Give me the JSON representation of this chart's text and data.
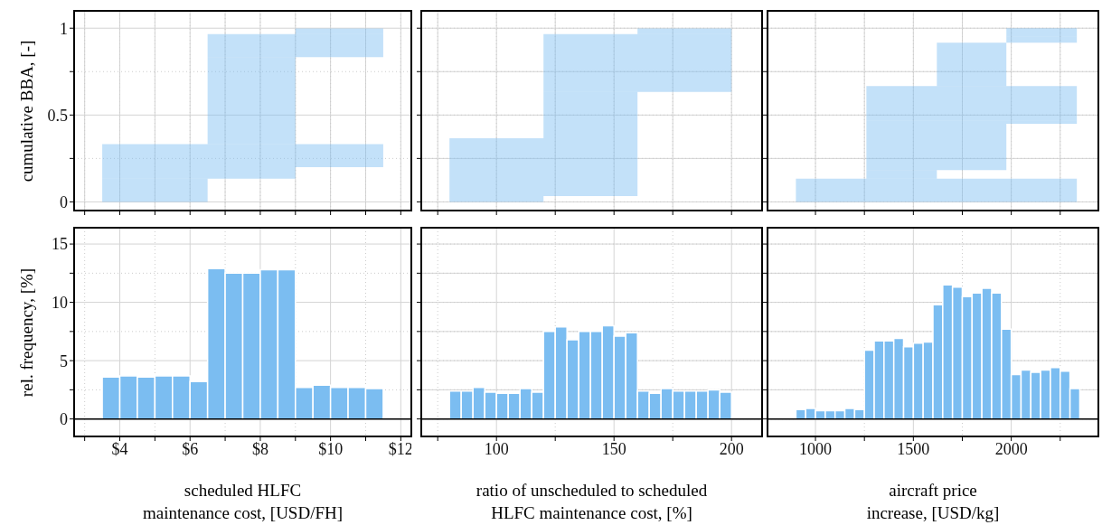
{
  "chart_data": [
    {
      "type": "area",
      "stacked": true,
      "ylabel": "cumulative BBA, [-]",
      "xlim": [
        2.7,
        12.3
      ],
      "ylim": [
        -0.05,
        1.1
      ],
      "xticks": [
        {
          "value": 3,
          "label": null
        },
        {
          "value": 4,
          "label": null
        },
        {
          "value": 5,
          "label": null
        },
        {
          "value": 6,
          "label": null
        },
        {
          "value": 7,
          "label": null
        },
        {
          "value": 8,
          "label": null
        },
        {
          "value": 9,
          "label": null
        },
        {
          "value": 10,
          "label": null
        },
        {
          "value": 11,
          "label": null
        },
        {
          "value": 12,
          "label": null
        }
      ],
      "yticks": [
        0,
        {
          "value": 0.25,
          "label": null
        },
        0.5,
        {
          "value": 0.75,
          "label": null
        },
        1
      ],
      "grid": true,
      "tick_labels": "y",
      "series": [
        {
          "x": [
            3.5,
            6.5
          ],
          "values": [
            0.033,
            0.033
          ],
          "color": "#7bbdf1"
        },
        {
          "x": [
            3.5,
            6.5
          ],
          "values": [
            0.1,
            0.1
          ],
          "color": "#7bbdf1"
        },
        {
          "x": [
            3.5,
            9
          ],
          "values": [
            0.067,
            0.067
          ],
          "color": "#7bbdf1"
        },
        {
          "x": [
            3.5,
            11.5
          ],
          "values": [
            0.133,
            0.133
          ],
          "color": "#7bbdf1"
        },
        {
          "x": [
            6.5,
            9
          ],
          "values": [
            0.267,
            0.267
          ],
          "color": "#7bbdf1"
        },
        {
          "x": [
            6.5,
            9
          ],
          "values": [
            0.233,
            0.233
          ],
          "color": "#7bbdf1"
        },
        {
          "x": [
            6.5,
            11.5
          ],
          "values": [
            0.133,
            0.133
          ],
          "color": "#7bbdf1"
        },
        {
          "x": [
            9,
            11.5
          ],
          "values": [
            0.033,
            0.033
          ],
          "color": "#7bbdf1"
        }
      ]
    },
    {
      "type": "area",
      "stacked": true,
      "xlim": [
        68,
        213
      ],
      "ylim": [
        -0.05,
        1.1
      ],
      "xticks": [
        {
          "value": 75,
          "label": null
        },
        {
          "value": 100,
          "label": null
        },
        {
          "value": 125,
          "label": null
        },
        {
          "value": 150,
          "label": null
        },
        {
          "value": 175,
          "label": null
        },
        {
          "value": 200,
          "label": null
        }
      ],
      "yticks": [
        {
          "value": 0,
          "label": null
        },
        {
          "value": 0.25,
          "label": null
        },
        {
          "value": 0.5,
          "label": null
        },
        {
          "value": 0.75,
          "label": null
        },
        {
          "value": 1,
          "label": null
        }
      ],
      "grid": true,
      "tick_labels": false,
      "series": [
        {
          "x": [
            80,
            120
          ],
          "values": [
            0.033,
            0.033
          ],
          "color": "#7bbdf1"
        },
        {
          "x": [
            80,
            160
          ],
          "values": [
            0.333,
            0.333
          ],
          "color": "#7bbdf1"
        },
        {
          "x": [
            120,
            160
          ],
          "values": [
            0.267,
            0.267
          ],
          "color": "#7bbdf1"
        },
        {
          "x": [
            120,
            200
          ],
          "values": [
            0.333,
            0.333
          ],
          "color": "#7bbdf1"
        },
        {
          "x": [
            160,
            200
          ],
          "values": [
            0.033,
            0.033
          ],
          "color": "#7bbdf1"
        }
      ]
    },
    {
      "type": "area",
      "stacked": true,
      "xlim": [
        755,
        2445
      ],
      "ylim": [
        -0.05,
        1.1
      ],
      "xticks": [
        {
          "value": 1000,
          "label": null
        },
        {
          "value": 1250,
          "label": null
        },
        {
          "value": 1500,
          "label": null
        },
        {
          "value": 1750,
          "label": null
        },
        {
          "value": 2000,
          "label": null
        },
        {
          "value": 2250,
          "label": null
        }
      ],
      "yticks": [
        {
          "value": 0,
          "label": null
        },
        {
          "value": 0.25,
          "label": null
        },
        {
          "value": 0.5,
          "label": null
        },
        {
          "value": 0.75,
          "label": null
        },
        {
          "value": 1,
          "label": null
        }
      ],
      "grid": true,
      "tick_labels": false,
      "series": [
        {
          "x": [
            900,
            2335
          ],
          "values": [
            0.133,
            0.133
          ],
          "color": "#7bbdf1"
        },
        {
          "x": [
            1260,
            1620
          ],
          "values": [
            0.05,
            0.05
          ],
          "color": "#7bbdf1"
        },
        {
          "x": [
            1260,
            1975
          ],
          "values": [
            0.267,
            0.267
          ],
          "color": "#7bbdf1"
        },
        {
          "x": [
            1260,
            2335
          ],
          "values": [
            0.017,
            0.017
          ],
          "color": "#7bbdf1"
        },
        {
          "x": [
            1260,
            2335
          ],
          "values": [
            0.2,
            0.2
          ],
          "color": "#7bbdf1"
        },
        {
          "x": [
            1620,
            1975
          ],
          "values": [
            0.25,
            0.25
          ],
          "color": "#7bbdf1"
        },
        {
          "x": [
            1975,
            2335
          ],
          "values": [
            0.033,
            0.033
          ],
          "color": "#7bbdf1"
        },
        {
          "x": [
            1975,
            2335
          ],
          "values": [
            0.05,
            0.05
          ],
          "color": "#7bbdf1"
        }
      ]
    },
    {
      "type": "histogram",
      "ylabel": "rel. frequency, [%]",
      "xlabel": "scheduled HLFC\nmaintenance cost, [USD/FH]",
      "xlim": [
        2.7,
        12.3
      ],
      "ylim": [
        -1.5,
        16.4
      ],
      "xticks": [
        {
          "value": 3,
          "label": null
        },
        {
          "value": 4,
          "label": "$4"
        },
        {
          "value": 5,
          "label": null
        },
        {
          "value": 6,
          "label": "$6"
        },
        {
          "value": 7,
          "label": null
        },
        {
          "value": 8,
          "label": "$8"
        },
        {
          "value": 9,
          "label": null
        },
        {
          "value": 10,
          "label": "$10"
        },
        {
          "value": 11,
          "label": null
        },
        {
          "value": 12,
          "label": "$12"
        }
      ],
      "yticks": [
        0,
        {
          "value": 2.5,
          "label": null
        },
        5,
        {
          "value": 7.5,
          "label": null
        },
        10,
        {
          "value": 12.5,
          "label": null
        },
        15
      ],
      "grid": true,
      "color": "#7bbdf1",
      "bins": [
        3.5,
        4,
        4.5,
        5,
        5.5,
        6,
        6.5,
        7,
        7.5,
        8,
        8.5,
        9,
        9.5,
        10,
        10.5,
        11,
        11.5
      ],
      "values": [
        3.6,
        3.7,
        3.6,
        3.7,
        3.7,
        3.2,
        12.9,
        12.5,
        12.5,
        12.8,
        12.8,
        2.7,
        2.9,
        2.7,
        2.7,
        2.6
      ],
      "ref_lines": [
        {
          "axis": "y",
          "value": 0,
          "color": "#000000"
        }
      ]
    },
    {
      "type": "histogram",
      "xlabel": "ratio of unscheduled to scheduled\nHLFC maintenance cost, [%]",
      "xlim": [
        68,
        213
      ],
      "ylim": [
        -1.5,
        16.4
      ],
      "xticks": [
        {
          "value": 75,
          "label": null
        },
        100,
        {
          "value": 125,
          "label": null
        },
        150,
        {
          "value": 175,
          "label": null
        },
        200
      ],
      "yticks": [
        {
          "value": 0,
          "label": null
        },
        {
          "value": 2.5,
          "label": null
        },
        {
          "value": 5,
          "label": null
        },
        {
          "value": 7.5,
          "label": null
        },
        {
          "value": 10,
          "label": null
        },
        {
          "value": 12.5,
          "label": null
        },
        {
          "value": 15,
          "label": null
        }
      ],
      "grid": true,
      "tick_labels": "x",
      "color": "#7bbdf1",
      "bins": [
        80,
        85,
        90,
        95,
        100,
        105,
        110,
        115,
        120,
        125,
        130,
        135,
        140,
        145,
        150,
        155,
        160,
        165,
        170,
        175,
        180,
        185,
        190,
        195,
        200
      ],
      "values": [
        2.4,
        2.4,
        2.7,
        2.3,
        2.2,
        2.2,
        2.6,
        2.3,
        7.5,
        7.9,
        6.8,
        7.5,
        7.5,
        8.0,
        7.1,
        7.4,
        2.4,
        2.2,
        2.6,
        2.4,
        2.4,
        2.4,
        2.5,
        2.3
      ],
      "ref_lines": [
        {
          "axis": "y",
          "value": 0,
          "color": "#000000"
        }
      ]
    },
    {
      "type": "histogram",
      "xlabel": "aircraft price\nincrease, [USD/kg]",
      "xlim": [
        755,
        2445
      ],
      "ylim": [
        -1.5,
        16.4
      ],
      "xticks": [
        1000,
        {
          "value": 1250,
          "label": null
        },
        1500,
        {
          "value": 1750,
          "label": null
        },
        2000,
        {
          "value": 2250,
          "label": null
        }
      ],
      "yticks": [
        {
          "value": 0,
          "label": null
        },
        {
          "value": 2.5,
          "label": null
        },
        {
          "value": 5,
          "label": null
        },
        {
          "value": 7.5,
          "label": null
        },
        {
          "value": 10,
          "label": null
        },
        {
          "value": 12.5,
          "label": null
        },
        {
          "value": 15,
          "label": null
        }
      ],
      "grid": true,
      "tick_labels": "x",
      "color": "#7bbdf1",
      "bins": [
        900,
        950,
        1000,
        1050,
        1100,
        1150,
        1200,
        1250,
        1300,
        1350,
        1400,
        1450,
        1500,
        1550,
        1600,
        1650,
        1700,
        1750,
        1800,
        1850,
        1900,
        1950,
        2000,
        2050,
        2100,
        2150,
        2200,
        2250,
        2300,
        2350
      ],
      "values": [
        0.8,
        0.9,
        0.7,
        0.7,
        0.7,
        0.9,
        0.8,
        5.9,
        6.7,
        6.7,
        6.9,
        6.2,
        6.5,
        6.6,
        9.8,
        11.5,
        11.3,
        10.5,
        10.8,
        11.2,
        10.8,
        7.7,
        3.8,
        4.2,
        4.0,
        4.2,
        4.4,
        4.1,
        2.6
      ],
      "ref_lines": [
        {
          "axis": "y",
          "value": 0,
          "color": "#000000"
        }
      ]
    }
  ]
}
